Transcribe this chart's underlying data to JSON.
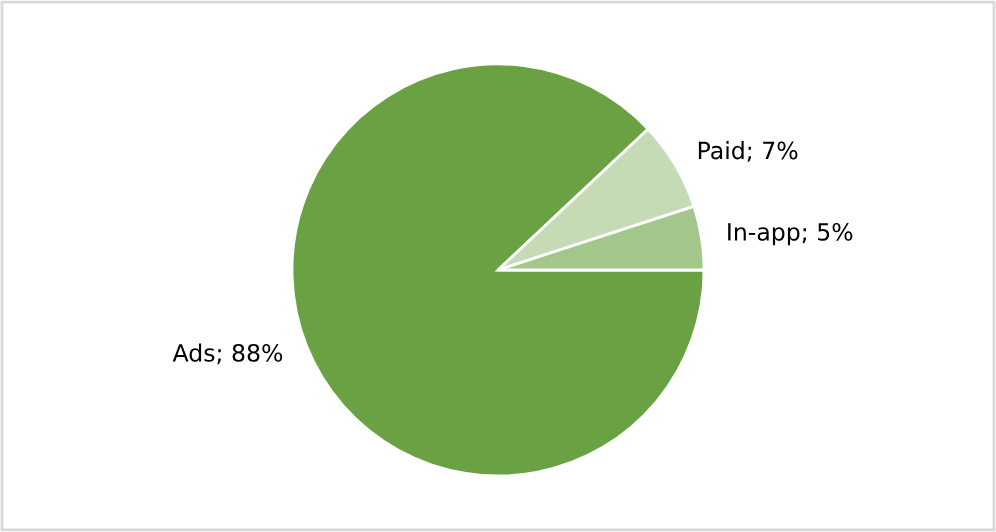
{
  "chart_data": {
    "type": "pie",
    "categories": [
      "Ads",
      "Paid",
      "In-app"
    ],
    "values": [
      88,
      7,
      5
    ],
    "value_labels": [
      "88%",
      "7%",
      "5%"
    ],
    "colors": [
      "#6aa142",
      "#c5dbb5",
      "#a3c68b"
    ],
    "legend": false
  }
}
